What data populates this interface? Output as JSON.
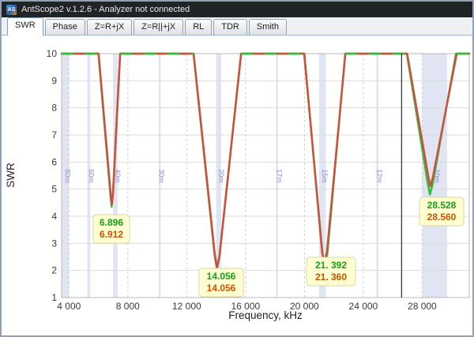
{
  "window": {
    "title": "AntScope2 v.1.2.6 - Analyzer not connected",
    "icon_text": "AS"
  },
  "tabs": {
    "active": "SWR",
    "items": [
      {
        "label": "SWR"
      },
      {
        "label": "Phase"
      },
      {
        "label": "Z=R+jX"
      },
      {
        "label": "Z=R||+jX"
      },
      {
        "label": "RL"
      },
      {
        "label": "TDR"
      },
      {
        "label": "Smith"
      }
    ]
  },
  "chart_data": {
    "type": "line",
    "title": "",
    "xlabel": "Frequency, kHz",
    "ylabel": "SWR",
    "xlim": [
      3500,
      31200
    ],
    "ylim": [
      1,
      10
    ],
    "grid": true,
    "legend": "none",
    "xticks": [
      {
        "v": 4000,
        "label": "4 000"
      },
      {
        "v": 8000,
        "label": "8 000"
      },
      {
        "v": 12000,
        "label": "12 000"
      },
      {
        "v": 16000,
        "label": "16 000"
      },
      {
        "v": 20000,
        "label": "20 000"
      },
      {
        "v": 24000,
        "label": "24 000"
      },
      {
        "v": 28000,
        "label": "28 000"
      }
    ],
    "yticks": [
      1,
      2,
      3,
      4,
      5,
      6,
      7,
      8,
      9,
      10
    ],
    "bands": [
      {
        "name": "80m",
        "from": 3500,
        "to": 4000
      },
      {
        "name": "60m",
        "from": 5250,
        "to": 5450
      },
      {
        "name": "40m",
        "from": 7000,
        "to": 7300
      },
      {
        "name": "30m",
        "from": 10100,
        "to": 10150
      },
      {
        "name": "20m",
        "from": 14000,
        "to": 14350
      },
      {
        "name": "17m",
        "from": 18068,
        "to": 18168
      },
      {
        "name": "15m",
        "from": 21000,
        "to": 21450
      },
      {
        "name": "12m",
        "from": 24890,
        "to": 24990
      },
      {
        "name": "10m",
        "from": 28000,
        "to": 29700
      }
    ],
    "series": [
      {
        "name": "swr-green",
        "color": "#2fbf3a",
        "points": [
          [
            3500,
            10
          ],
          [
            6000,
            10
          ],
          [
            6820,
            4.75
          ],
          [
            6896,
            4.35
          ],
          [
            6980,
            4.75
          ],
          [
            7470,
            10
          ],
          [
            12460,
            10
          ],
          [
            13900,
            2.55
          ],
          [
            14056,
            2.05
          ],
          [
            14220,
            2.5
          ],
          [
            15690,
            10
          ],
          [
            19980,
            10
          ],
          [
            21230,
            2.6
          ],
          [
            21392,
            2.2
          ],
          [
            21560,
            2.62
          ],
          [
            22770,
            10
          ],
          [
            26960,
            10
          ],
          [
            28380,
            5.2
          ],
          [
            28528,
            4.8
          ],
          [
            28700,
            5.15
          ],
          [
            30300,
            10
          ],
          [
            31200,
            10
          ]
        ]
      },
      {
        "name": "swr-red",
        "color": "#cf4f3f",
        "points": [
          [
            3500,
            10
          ],
          [
            6010,
            10
          ],
          [
            6830,
            4.85
          ],
          [
            6912,
            4.45
          ],
          [
            6995,
            4.85
          ],
          [
            7480,
            10
          ],
          [
            12470,
            10
          ],
          [
            13910,
            2.6
          ],
          [
            14056,
            2.1
          ],
          [
            14230,
            2.55
          ],
          [
            15700,
            10
          ],
          [
            19990,
            10
          ],
          [
            21200,
            2.68
          ],
          [
            21360,
            2.28
          ],
          [
            21530,
            2.7
          ],
          [
            22780,
            10
          ],
          [
            26980,
            10
          ],
          [
            28410,
            5.5
          ],
          [
            28560,
            5.1
          ],
          [
            28730,
            5.45
          ],
          [
            30350,
            10
          ],
          [
            31200,
            10
          ]
        ]
      }
    ],
    "top_overlap_segments": [
      [
        3500,
        6000
      ],
      [
        7480,
        12460
      ],
      [
        15700,
        19980
      ],
      [
        22780,
        26960
      ],
      [
        30350,
        31200
      ]
    ],
    "cursor_khz": 26600,
    "markers": [
      {
        "green": "6.896",
        "red": "6.912"
      },
      {
        "green": "14.056",
        "red": "14.056"
      },
      {
        "green": "21. 392",
        "red": "21. 360"
      },
      {
        "green": "28.528",
        "red": "28.560"
      }
    ],
    "colors": {
      "band": "#c7cdea",
      "band_label": "#8c8cd9",
      "grid": "#dcdcdc",
      "vgrid": "#d0d0d0",
      "frame": "#b8b8b8",
      "cursor": "#000000",
      "marker_bg": "#ffffd2",
      "marker_border": "#d9d7a0",
      "marker_green": "#18a018",
      "marker_red": "#cc5200",
      "tick_text": "#3a3a3a"
    }
  }
}
